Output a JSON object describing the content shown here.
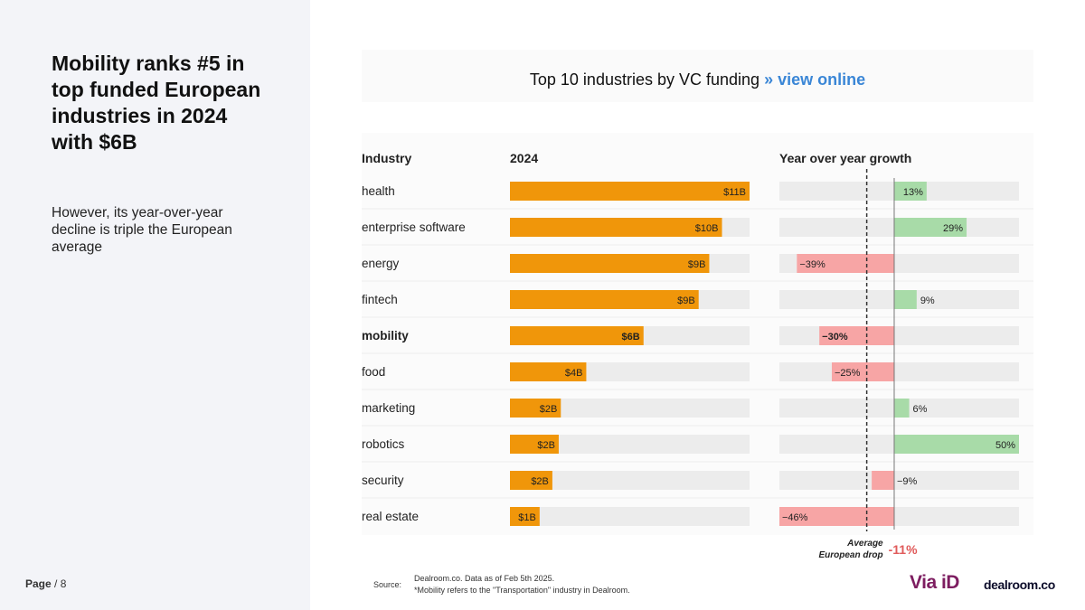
{
  "left": {
    "headline": "Mobility ranks #5 in top funded European industries in 2024 with $6B",
    "subhead": "However, its year-over-year decline is triple the European average",
    "page_label": "Page",
    "page_total": "/ 8"
  },
  "header": {
    "chart_title": "Top 10 industries by VC funding",
    "view_online": "» view online"
  },
  "footer": {
    "source_label": "Source:",
    "source_line1": "Dealroom.co.  Data as of Feb 5th 2025.",
    "source_line2": "*Mobility refers to the \"Transportation\" industry in Dealroom.",
    "logo_via": "Via iD",
    "logo_dealroom": "dealroom.co"
  },
  "colors": {
    "bar_funding": "#f0960a",
    "bar_track": "#ececec",
    "growth_positive": "#a8dba8",
    "growth_negative": "#f7a5a5",
    "average_value": "#e05a5a",
    "link": "#3a86d6"
  },
  "chart_data": {
    "type": "bar",
    "title": "Top 10 industries by VC funding",
    "column_headers": {
      "industry": "Industry",
      "funding": "2024",
      "growth": "Year over year growth"
    },
    "categories": [
      "health",
      "enterprise software",
      "energy",
      "fintech",
      "mobility",
      "food",
      "marketing",
      "robotics",
      "security",
      "real estate"
    ],
    "highlight": "mobility",
    "series": [
      {
        "name": "2024",
        "unit": "$B",
        "values": [
          11.3,
          10,
          9.4,
          8.9,
          6.3,
          3.6,
          2.4,
          2.3,
          2,
          1.4
        ],
        "labels": [
          "$11B",
          "$10B",
          "$9B",
          "$9B",
          "$6B",
          "$4B",
          "$2B",
          "$2B",
          "$2B",
          "$1B"
        ],
        "xlim": [
          0,
          11.3
        ]
      },
      {
        "name": "Year over year growth",
        "unit": "%",
        "values": [
          13,
          29,
          -39,
          9,
          -30,
          -25,
          6,
          50,
          -9,
          -46
        ],
        "labels": [
          "13%",
          "29%",
          "−39%",
          "9%",
          "−30%",
          "−25%",
          "6%",
          "50%",
          "−9%",
          "−46%"
        ],
        "xlim": [
          -46,
          50
        ]
      }
    ],
    "average": {
      "value": -11,
      "label": "-11%",
      "caption_line1": "Average",
      "caption_line2": "European drop"
    }
  }
}
